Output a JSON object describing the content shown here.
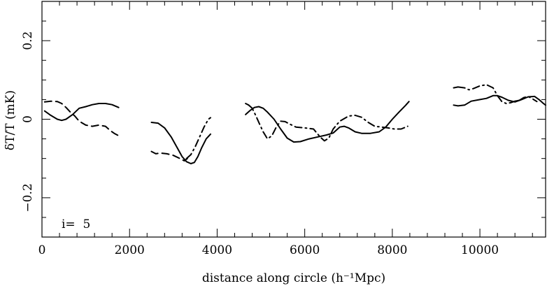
{
  "chart_data": {
    "type": "line",
    "xlabel": "distance along circle (h⁻¹Mpc)",
    "ylabel": "δT/T (mK)",
    "xlim": [
      0,
      11500
    ],
    "ylim": [
      -0.3,
      0.3
    ],
    "x_ticks": [
      0,
      2000,
      4000,
      6000,
      8000,
      10000
    ],
    "x_tick_labels": [
      "0",
      "2000",
      "4000",
      "6000",
      "8000",
      "10000"
    ],
    "y_ticks": [
      -0.2,
      0,
      0.2
    ],
    "y_tick_labels": [
      "−0.2",
      "0",
      "0.2"
    ],
    "annotation": "i=  5",
    "grid": false,
    "legend": "none",
    "series": [
      {
        "style": "solid",
        "segments": [
          [
            [
              60,
              0.021
            ],
            [
              200,
              0.01
            ],
            [
              350,
              0.0
            ],
            [
              450,
              -0.003
            ],
            [
              550,
              0.0
            ],
            [
              700,
              0.012
            ],
            [
              850,
              0.028
            ],
            [
              1000,
              0.032
            ],
            [
              1150,
              0.037
            ],
            [
              1300,
              0.04
            ],
            [
              1450,
              0.04
            ],
            [
              1600,
              0.037
            ],
            [
              1750,
              0.03
            ]
          ],
          [
            [
              2500,
              -0.008
            ],
            [
              2650,
              -0.01
            ],
            [
              2800,
              -0.022
            ],
            [
              2950,
              -0.045
            ],
            [
              3100,
              -0.075
            ],
            [
              3200,
              -0.095
            ],
            [
              3300,
              -0.108
            ],
            [
              3400,
              -0.113
            ],
            [
              3480,
              -0.11
            ],
            [
              3560,
              -0.095
            ],
            [
              3650,
              -0.072
            ],
            [
              3750,
              -0.05
            ],
            [
              3850,
              -0.038
            ]
          ],
          [
            [
              4650,
              0.012
            ],
            [
              4750,
              0.022
            ],
            [
              4850,
              0.03
            ],
            [
              4950,
              0.032
            ],
            [
              5050,
              0.028
            ],
            [
              5150,
              0.018
            ],
            [
              5300,
              0.0
            ],
            [
              5450,
              -0.025
            ],
            [
              5600,
              -0.048
            ],
            [
              5750,
              -0.058
            ],
            [
              5900,
              -0.057
            ],
            [
              6100,
              -0.05
            ],
            [
              6300,
              -0.045
            ],
            [
              6500,
              -0.04
            ],
            [
              6650,
              -0.035
            ],
            [
              6800,
              -0.02
            ],
            [
              6900,
              -0.018
            ],
            [
              7000,
              -0.022
            ],
            [
              7150,
              -0.032
            ],
            [
              7300,
              -0.036
            ],
            [
              7500,
              -0.036
            ],
            [
              7700,
              -0.032
            ],
            [
              7850,
              -0.02
            ],
            [
              8000,
              0.0
            ],
            [
              8150,
              0.018
            ],
            [
              8300,
              0.035
            ],
            [
              8380,
              0.045
            ]
          ],
          [
            [
              9400,
              0.036
            ],
            [
              9500,
              0.034
            ],
            [
              9650,
              0.036
            ],
            [
              9800,
              0.046
            ],
            [
              10000,
              0.05
            ],
            [
              10150,
              0.053
            ],
            [
              10300,
              0.06
            ],
            [
              10400,
              0.06
            ],
            [
              10500,
              0.056
            ],
            [
              10650,
              0.048
            ],
            [
              10800,
              0.044
            ],
            [
              10950,
              0.05
            ],
            [
              11100,
              0.057
            ],
            [
              11250,
              0.058
            ],
            [
              11350,
              0.05
            ],
            [
              11450,
              0.04
            ],
            [
              11500,
              0.036
            ]
          ]
        ]
      },
      {
        "style": "dashed",
        "segments": [
          [
            [
              60,
              0.044
            ],
            [
              200,
              0.046
            ],
            [
              350,
              0.045
            ],
            [
              450,
              0.04
            ],
            [
              550,
              0.03
            ],
            [
              650,
              0.018
            ],
            [
              750,
              0.008
            ],
            [
              850,
              -0.005
            ],
            [
              1000,
              -0.015
            ],
            [
              1150,
              -0.018
            ],
            [
              1300,
              -0.015
            ],
            [
              1450,
              -0.018
            ],
            [
              1550,
              -0.028
            ],
            [
              1650,
              -0.036
            ],
            [
              1750,
              -0.042
            ]
          ],
          [
            [
              2500,
              -0.082
            ],
            [
              2600,
              -0.088
            ],
            [
              2700,
              -0.086
            ],
            [
              2850,
              -0.088
            ],
            [
              3000,
              -0.092
            ],
            [
              3150,
              -0.1
            ],
            [
              3250,
              -0.106
            ],
            [
              3320,
              -0.1
            ]
          ],
          [
            [
              4650,
              0.04
            ],
            [
              4720,
              0.036
            ]
          ],
          [
            [
              9400,
              0.08
            ],
            [
              9500,
              0.082
            ]
          ],
          [
            [
              10800,
              0.046
            ],
            [
              10900,
              0.048
            ]
          ]
        ]
      },
      {
        "style": "dashdot",
        "segments": [
          [
            [
              3300,
              -0.1
            ],
            [
              3400,
              -0.09
            ],
            [
              3500,
              -0.07
            ],
            [
              3600,
              -0.045
            ],
            [
              3700,
              -0.02
            ],
            [
              3800,
              0.0
            ],
            [
              3850,
              0.004
            ]
          ],
          [
            [
              4720,
              0.036
            ],
            [
              4800,
              0.028
            ],
            [
              4880,
              0.01
            ],
            [
              4960,
              -0.01
            ],
            [
              5050,
              -0.032
            ],
            [
              5150,
              -0.05
            ],
            [
              5250,
              -0.042
            ],
            [
              5350,
              -0.02
            ],
            [
              5450,
              -0.005
            ],
            [
              5550,
              -0.006
            ],
            [
              5650,
              -0.012
            ],
            [
              5800,
              -0.02
            ],
            [
              6000,
              -0.022
            ],
            [
              6200,
              -0.025
            ],
            [
              6350,
              -0.045
            ],
            [
              6450,
              -0.055
            ],
            [
              6550,
              -0.048
            ],
            [
              6650,
              -0.025
            ],
            [
              6800,
              -0.005
            ],
            [
              7000,
              0.008
            ],
            [
              7150,
              0.01
            ],
            [
              7300,
              0.005
            ],
            [
              7450,
              -0.008
            ],
            [
              7600,
              -0.018
            ],
            [
              7750,
              -0.02
            ],
            [
              7900,
              -0.022
            ],
            [
              8050,
              -0.025
            ],
            [
              8200,
              -0.025
            ],
            [
              8350,
              -0.018
            ]
          ],
          [
            [
              9500,
              0.082
            ],
            [
              9650,
              0.08
            ],
            [
              9750,
              0.075
            ],
            [
              9850,
              0.078
            ],
            [
              10000,
              0.085
            ],
            [
              10150,
              0.088
            ],
            [
              10300,
              0.08
            ],
            [
              10400,
              0.06
            ],
            [
              10500,
              0.045
            ],
            [
              10600,
              0.04
            ],
            [
              10700,
              0.042
            ],
            [
              10800,
              0.046
            ]
          ],
          [
            [
              10900,
              0.048
            ],
            [
              11000,
              0.055
            ],
            [
              11100,
              0.058
            ],
            [
              11200,
              0.052
            ],
            [
              11300,
              0.045
            ]
          ]
        ]
      }
    ]
  }
}
